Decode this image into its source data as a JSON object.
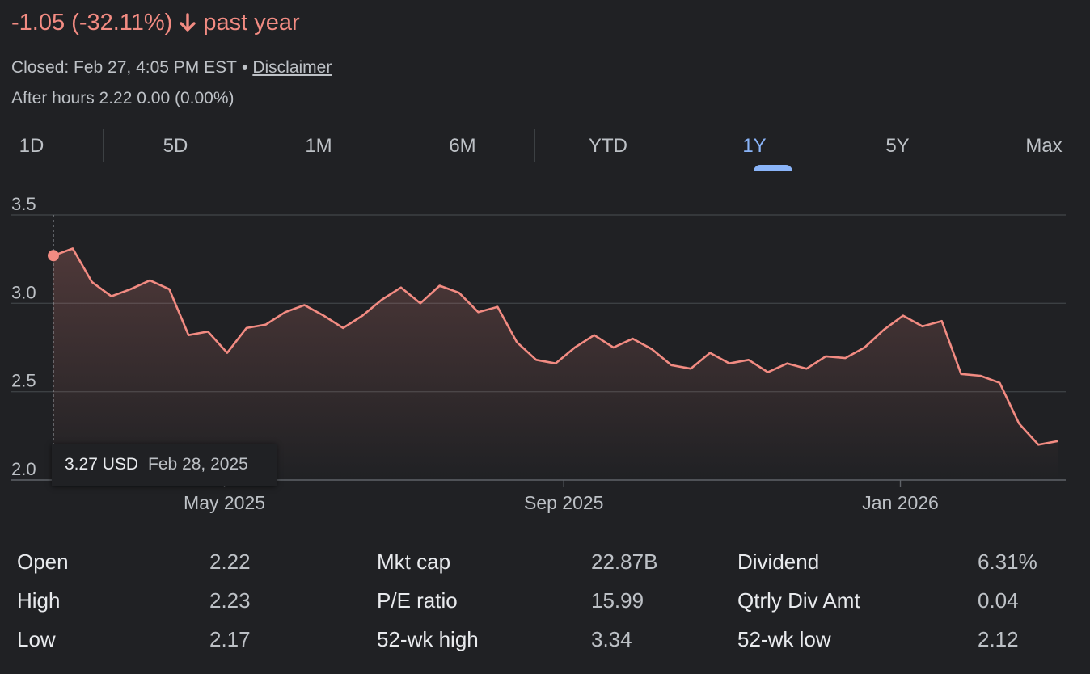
{
  "header": {
    "change": "-1.05 (-32.11%)",
    "period": "past year",
    "closed": "Closed: Feb 27, 4:05 PM EST",
    "separator": "•",
    "disclaimer": "Disclaimer",
    "after_hours": "After hours 2.22 0.00 (0.00%)",
    "down_color": "#f28b82"
  },
  "tabs": [
    {
      "label": "1D"
    },
    {
      "label": "5D"
    },
    {
      "label": "1M"
    },
    {
      "label": "6M"
    },
    {
      "label": "YTD"
    },
    {
      "label": "1Y",
      "active": true
    },
    {
      "label": "5Y"
    },
    {
      "label": "Max"
    }
  ],
  "tooltip": {
    "price": "3.27 USD",
    "date": "Feb 28, 2025"
  },
  "chart_data": {
    "type": "line",
    "ylim": [
      2.0,
      3.5
    ],
    "y_ticks": [
      "3.5",
      "3.0",
      "2.5",
      "2.0"
    ],
    "x_ticks": [
      "May 2025",
      "Sep 2025",
      "Jan 2026"
    ],
    "line_color": "#f28b82",
    "grid": true,
    "x": [
      "2025-02-28",
      "2025-03-07",
      "2025-03-14",
      "2025-03-21",
      "2025-03-28",
      "2025-04-04",
      "2025-04-11",
      "2025-04-18",
      "2025-04-25",
      "2025-05-02",
      "2025-05-09",
      "2025-05-16",
      "2025-05-23",
      "2025-05-30",
      "2025-06-06",
      "2025-06-13",
      "2025-06-20",
      "2025-06-27",
      "2025-07-04",
      "2025-07-11",
      "2025-07-18",
      "2025-07-25",
      "2025-08-01",
      "2025-08-08",
      "2025-08-15",
      "2025-08-22",
      "2025-08-29",
      "2025-09-05",
      "2025-09-12",
      "2025-09-19",
      "2025-09-26",
      "2025-10-03",
      "2025-10-10",
      "2025-10-17",
      "2025-10-24",
      "2025-10-31",
      "2025-11-07",
      "2025-11-14",
      "2025-11-21",
      "2025-11-28",
      "2025-12-05",
      "2025-12-12",
      "2025-12-19",
      "2025-12-26",
      "2026-01-02",
      "2026-01-09",
      "2026-01-16",
      "2026-01-23",
      "2026-01-30",
      "2026-02-06",
      "2026-02-13",
      "2026-02-20",
      "2026-02-27"
    ],
    "values": [
      3.27,
      3.31,
      3.12,
      3.04,
      3.08,
      3.13,
      3.08,
      2.82,
      2.84,
      2.72,
      2.86,
      2.88,
      2.95,
      2.99,
      2.93,
      2.86,
      2.93,
      3.02,
      3.09,
      3.0,
      3.1,
      3.06,
      2.95,
      2.98,
      2.78,
      2.68,
      2.66,
      2.75,
      2.82,
      2.75,
      2.8,
      2.74,
      2.65,
      2.63,
      2.72,
      2.66,
      2.68,
      2.61,
      2.66,
      2.63,
      2.7,
      2.69,
      2.75,
      2.85,
      2.93,
      2.87,
      2.9,
      2.6,
      2.59,
      2.55,
      2.32,
      2.2,
      2.22
    ]
  },
  "stats": [
    [
      {
        "label": "Open",
        "value": "2.22"
      },
      {
        "label": "Mkt cap",
        "value": "22.87B"
      },
      {
        "label": "Dividend",
        "value": "6.31%"
      }
    ],
    [
      {
        "label": "High",
        "value": "2.23"
      },
      {
        "label": "P/E ratio",
        "value": "15.99"
      },
      {
        "label": "Qtrly Div Amt",
        "value": "0.04"
      }
    ],
    [
      {
        "label": "Low",
        "value": "2.17"
      },
      {
        "label": "52-wk high",
        "value": "3.34"
      },
      {
        "label": "52-wk low",
        "value": "2.12"
      }
    ]
  ]
}
